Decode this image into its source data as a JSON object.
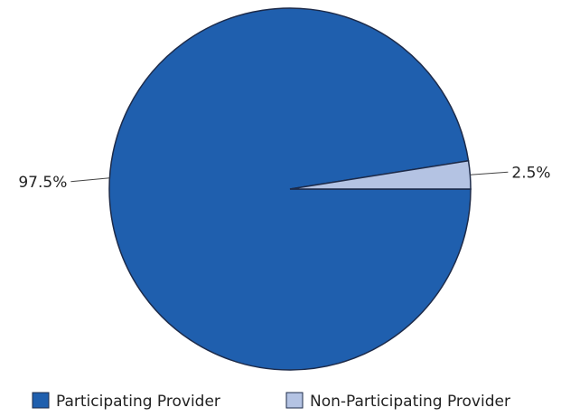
{
  "chart_data": {
    "type": "pie",
    "title": "",
    "slices": [
      {
        "label": "Participating Provider",
        "value": 97.5,
        "display": "97.5%",
        "color": "#1f5fae"
      },
      {
        "label": "Non-Participating Provider",
        "value": 2.5,
        "display": "2.5%",
        "color": "#b4c3e3"
      }
    ],
    "legend": {
      "placement": "bottom",
      "entries": [
        "Participating Provider",
        "Non-Participating Provider"
      ]
    },
    "border_color": "#1d2b4a"
  }
}
